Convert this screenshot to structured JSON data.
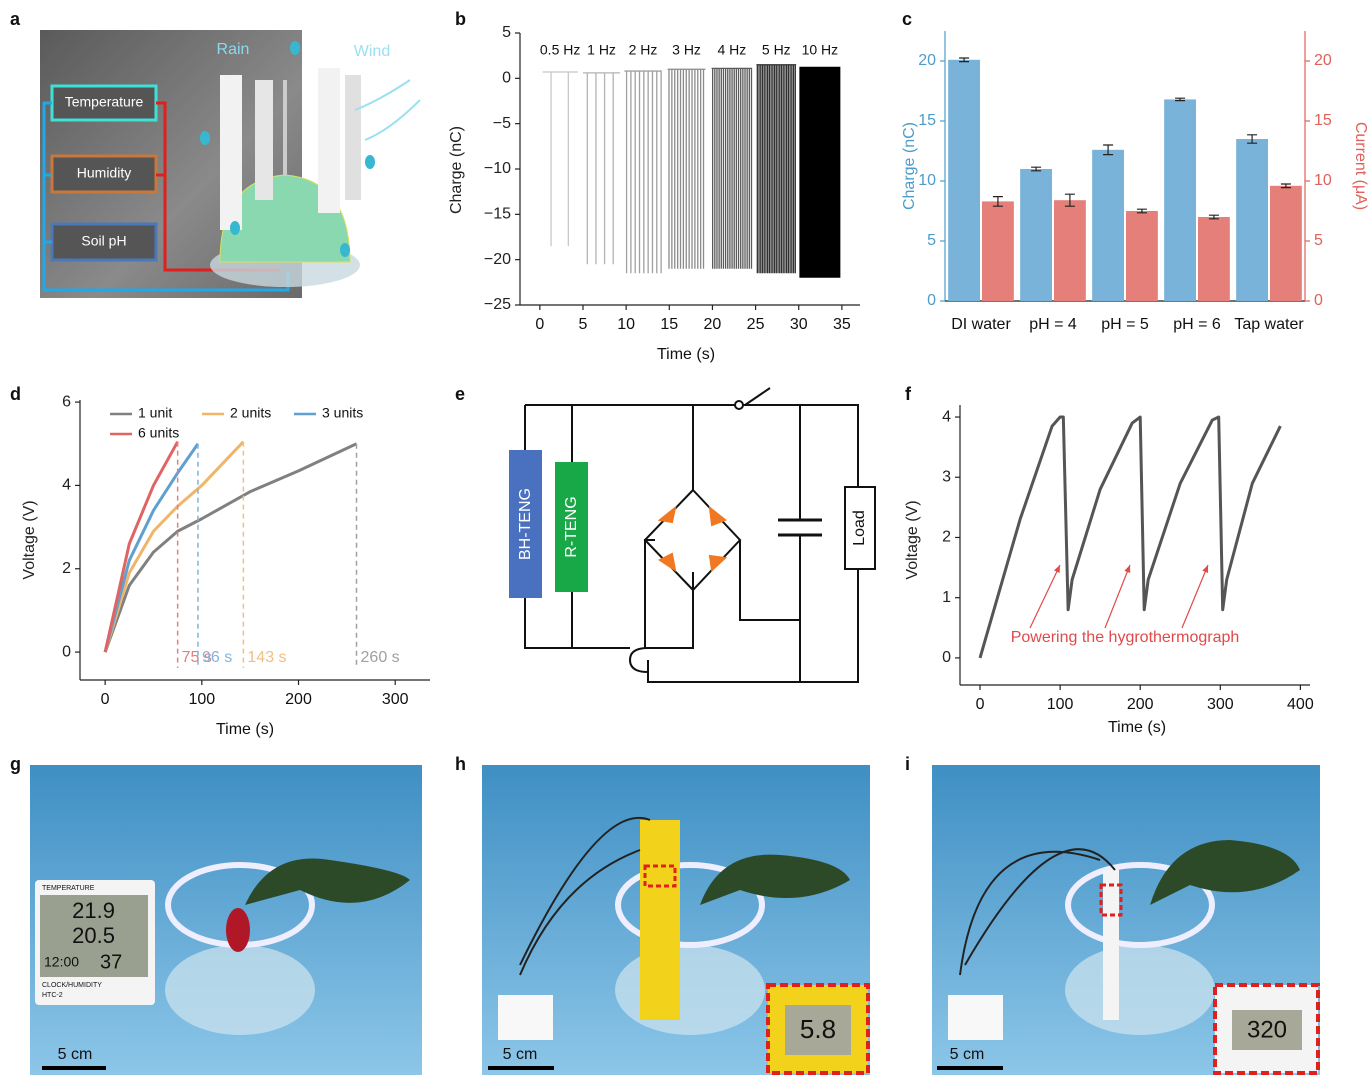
{
  "panel_labels": [
    "a",
    "b",
    "c",
    "d",
    "e",
    "f",
    "g",
    "h",
    "i"
  ],
  "diagram_a": {
    "rain": "Rain",
    "wind": "Wind",
    "sensors": [
      "Temperature",
      "Humidity",
      "Soil pH"
    ]
  },
  "chart_data": [
    {
      "type": "pulse",
      "xlabel": "Time (s)",
      "ylabel": "Charge (nC)",
      "xlim": [
        -2.3,
        37.1
      ],
      "ylim": [
        -25,
        5
      ],
      "xticks": [
        0,
        5,
        10,
        15,
        20,
        25,
        30,
        35
      ],
      "yticks": [
        {
          "value": -25,
          "label": "−25"
        },
        {
          "value": -20,
          "label": "−20"
        },
        {
          "value": -15,
          "label": "−15"
        },
        {
          "value": -10,
          "label": "−10"
        },
        {
          "value": -5,
          "label": "−5"
        },
        0,
        5
      ],
      "series": [
        {
          "name": "0.5 Hz",
          "frequency": 0.5,
          "color": "#c8c8c8",
          "x": [
            0.3,
            4.4
          ],
          "values": [
            0.7,
            -18.5
          ]
        },
        {
          "name": "1 Hz",
          "frequency": 1,
          "color": "#b4b4b4",
          "x": [
            5.0,
            9.3
          ],
          "values": [
            0.6,
            -20.5
          ]
        },
        {
          "name": "2 Hz",
          "frequency": 2,
          "color": "#a0a0a0",
          "x": [
            9.8,
            14.1
          ],
          "values": [
            0.8,
            -21.5
          ]
        },
        {
          "name": "3 Hz",
          "frequency": 3,
          "color": "#8a8a8a",
          "x": [
            14.8,
            19.2
          ],
          "values": [
            1.0,
            -21
          ]
        },
        {
          "name": "4 Hz",
          "frequency": 4,
          "color": "#5a5a5a",
          "x": [
            19.9,
            24.6
          ],
          "values": [
            1.1,
            -21
          ]
        },
        {
          "name": "5 Hz",
          "frequency": 5,
          "color": "#303030",
          "x": [
            25.1,
            29.7
          ],
          "values": [
            1.5,
            -21.5
          ]
        },
        {
          "name": "10 Hz",
          "frequency": 10,
          "color": "#000000",
          "x": [
            30.1,
            34.8
          ],
          "values": [
            1.2,
            -22
          ]
        }
      ]
    },
    {
      "type": "bar",
      "ylabel": "Charge (nC)",
      "y2label": "Current (μA)",
      "categories": [
        "DI water",
        "pH = 4",
        "pH = 5",
        "pH = 6",
        "Tap water"
      ],
      "ylim": [
        0,
        22.5
      ],
      "yticks": [
        0,
        5,
        10,
        15,
        20
      ],
      "y2lim": [
        0,
        22.5
      ],
      "y2ticks": [
        0,
        5,
        10,
        15,
        20
      ],
      "ycolor": "#4d9cc9",
      "y2color": "#e0605a",
      "series": [
        {
          "color": "#7ab3d9",
          "values": [
            20.1,
            11.0,
            12.6,
            16.8,
            13.5
          ],
          "errors": [
            0.15,
            0.15,
            0.4,
            0.1,
            0.35
          ]
        },
        {
          "color": "#e57f7a",
          "axis": "y2",
          "values": [
            8.3,
            8.4,
            7.5,
            7.0,
            9.6
          ],
          "errors": [
            0.4,
            0.5,
            0.15,
            0.15,
            0.15
          ]
        }
      ]
    },
    {
      "type": "line",
      "xlabel": "Time (s)",
      "ylabel": "Voltage (V)",
      "xlim": [
        -26,
        336
      ],
      "ylim": [
        -0.67,
        6.05
      ],
      "xticks": [
        0,
        100,
        200,
        300
      ],
      "yticks": [
        0,
        2,
        4,
        6
      ],
      "series": [
        {
          "name": "1 unit",
          "color": "#808080",
          "x": [
            0,
            25,
            50,
            75,
            100,
            150,
            200,
            260
          ],
          "values": [
            0,
            1.6,
            2.4,
            2.9,
            3.2,
            3.85,
            4.35,
            5.0
          ]
        },
        {
          "name": "2 units",
          "color": "#f0b568",
          "x": [
            0,
            25,
            50,
            75,
            100,
            143
          ],
          "values": [
            0,
            1.9,
            2.9,
            3.5,
            4.0,
            5.05
          ]
        },
        {
          "name": "3 units",
          "color": "#5fa0d0",
          "x": [
            0,
            25,
            50,
            75,
            96
          ],
          "values": [
            0,
            2.2,
            3.4,
            4.3,
            5.0
          ]
        },
        {
          "name": "6 units",
          "color": "#e06464",
          "x": [
            0,
            25,
            50,
            75
          ],
          "values": [
            0,
            2.6,
            4.0,
            5.05
          ]
        }
      ],
      "markers": [
        {
          "value": 75,
          "label": "75 s",
          "color": "#e08080"
        },
        {
          "value": 96,
          "label": "96 s",
          "color": "#80b4dc"
        },
        {
          "value": 143,
          "label": "143 s",
          "color": "#f0c080"
        },
        {
          "value": 260,
          "label": "260 s",
          "color": "#a0a0a0"
        }
      ]
    },
    {
      "type": "line",
      "xlabel": "Time (s)",
      "ylabel": "Voltage (V)",
      "xlim": [
        -25,
        412
      ],
      "ylim": [
        -0.45,
        4.2
      ],
      "xticks": [
        0,
        100,
        200,
        300,
        400
      ],
      "yticks": [
        0,
        1,
        2,
        3,
        4
      ],
      "series": [
        {
          "color": "#555555",
          "x": [
            0,
            50,
            90,
            100,
            104,
            110,
            115,
            150,
            190,
            200,
            205,
            210,
            250,
            290,
            298,
            303,
            308,
            340,
            375
          ],
          "values": [
            0,
            2.3,
            3.85,
            4.0,
            4.0,
            0.8,
            1.3,
            2.8,
            3.9,
            4.0,
            0.8,
            1.3,
            2.9,
            3.95,
            4.0,
            0.8,
            1.3,
            2.9,
            3.85
          ]
        }
      ],
      "annotation": {
        "text": "Powering the hygrothermograph",
        "color": "#e04a4a"
      }
    }
  ],
  "circuit_e": {
    "components": [
      "BH-TENG",
      "R-TENG",
      "Load"
    ]
  },
  "photos": [
    {
      "scale_bar": "5 cm",
      "display": [
        "TEMPERATURE",
        "21.9",
        "20.5",
        "12:00",
        "37",
        "CLOCK/HUMIDITY",
        "HTC-2"
      ]
    },
    {
      "scale_bar": "5 cm",
      "display": [
        "5.8"
      ]
    },
    {
      "scale_bar": "5 cm",
      "display": [
        "320"
      ]
    }
  ]
}
